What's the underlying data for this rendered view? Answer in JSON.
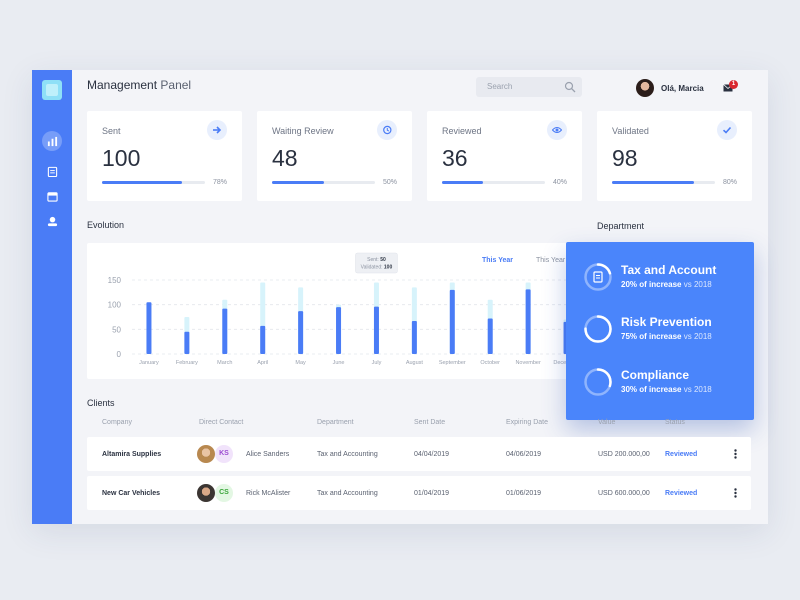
{
  "header": {
    "title_strong": "Management",
    "title_light": "Panel"
  },
  "search": {
    "placeholder": "Search"
  },
  "user": {
    "name": "Olá, Marcia",
    "notifications": "1"
  },
  "stats": [
    {
      "label": "Sent",
      "value": "100",
      "percent": "78%",
      "fill": 0.78,
      "icon": "arrow-right-icon"
    },
    {
      "label": "Waiting Review",
      "value": "48",
      "percent": "50%",
      "fill": 0.5,
      "icon": "history-icon"
    },
    {
      "label": "Reviewed",
      "value": "36",
      "percent": "40%",
      "fill": 0.4,
      "icon": "eye-icon"
    },
    {
      "label": "Validated",
      "value": "98",
      "percent": "80%",
      "fill": 0.8,
      "icon": "check-icon"
    }
  ],
  "sections": {
    "evolution": "Evolution",
    "department": "Department",
    "clients": "Clients"
  },
  "chart_tabs": {
    "this_year": "This Year",
    "last_year": "This Year"
  },
  "tooltip": {
    "sent_label": "Sent:",
    "sent_value": "50",
    "validated_label": "Validated:",
    "validated_value": "100"
  },
  "chart_data": {
    "type": "bar",
    "categories": [
      "January",
      "February",
      "March",
      "April",
      "May",
      "June",
      "July",
      "August",
      "September",
      "October",
      "November",
      "December"
    ],
    "series": [
      {
        "name": "Sent",
        "values": [
          105,
          45,
          92,
          57,
          87,
          95,
          96,
          67,
          130,
          72,
          131,
          65
        ]
      },
      {
        "name": "Validated",
        "values": [
          0,
          75,
          110,
          145,
          135,
          100,
          145,
          135,
          145,
          110,
          145,
          70
        ]
      }
    ],
    "yticks": [
      0,
      50,
      100,
      150
    ],
    "ylim": [
      0,
      150
    ],
    "grid": true
  },
  "department": [
    {
      "title": "Tax and Account",
      "pct": "20% of increase",
      "vs": "vs 2018",
      "icon": "clipboard-icon"
    },
    {
      "title": "Risk Prevention",
      "pct": "75% of increase",
      "vs": "vs 2018",
      "icon": ""
    },
    {
      "title": "Compliance",
      "pct": "30% of increase",
      "vs": "vs 2018",
      "icon": ""
    }
  ],
  "table": {
    "headers": [
      "Company",
      "Direct Contact",
      "Department",
      "Sent Date",
      "Expiring Date",
      "Value",
      "Status"
    ],
    "rows": [
      {
        "company": "Altamira Supplies",
        "initials": "KS",
        "contact": "Alice Sanders",
        "department": "Tax and Accounting",
        "sent": "04/04/2019",
        "expiring": "04/06/2019",
        "value": "USD 200.000,00",
        "status": "Reviewed"
      },
      {
        "company": "New Car Vehicles",
        "initials": "CS",
        "contact": "Rick McAlister",
        "department": "Tax and Accounting",
        "sent": "01/04/2019",
        "expiring": "01/06/2019",
        "value": "USD 600.000,00",
        "status": "Reviewed"
      }
    ]
  },
  "colors": {
    "primary": "#4a7cf6",
    "bar_light": "#d7f3fb",
    "badge": "#d9282f"
  }
}
